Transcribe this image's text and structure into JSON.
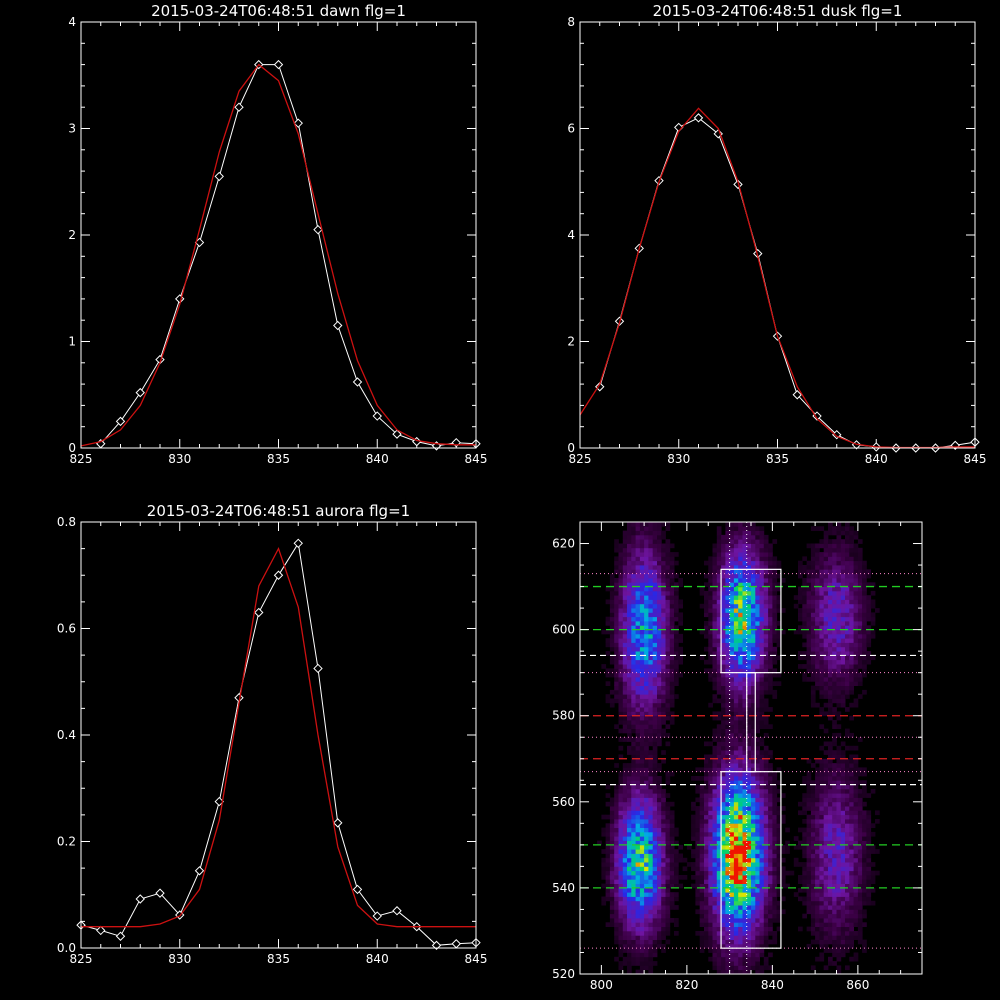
{
  "colors": {
    "background": "#000000",
    "axes": "#ffffff",
    "data_line": "#ffffff",
    "fit_line": "#cc1111",
    "green_dash": "#22cc22",
    "red_dash": "#dd2222",
    "white_dash": "#ffffff",
    "pink_dotted": "#ff88cc"
  },
  "chart_data": [
    {
      "type": "line",
      "title": "2015-03-24T06:48:51 dawn flg=1",
      "xlim": [
        825,
        845
      ],
      "ylim": [
        0,
        4
      ],
      "xticks": [
        825,
        830,
        835,
        840,
        845
      ],
      "yticks": [
        0,
        1,
        2,
        3,
        4
      ],
      "series": [
        {
          "role": "data",
          "marker": "diamond",
          "x": [
            826,
            827,
            828,
            829,
            830,
            831,
            832,
            833,
            834,
            835,
            836,
            837,
            838,
            839,
            840,
            841,
            842,
            843,
            844,
            845
          ],
          "y": [
            0.04,
            0.25,
            0.52,
            0.83,
            1.4,
            1.93,
            2.55,
            3.2,
            3.6,
            3.6,
            3.05,
            2.05,
            1.15,
            0.62,
            0.3,
            0.13,
            0.06,
            0.02,
            0.05,
            0.04
          ]
        },
        {
          "role": "fit",
          "x": [
            825,
            826,
            827,
            828,
            829,
            830,
            831,
            832,
            833,
            834,
            835,
            836,
            837,
            838,
            839,
            840,
            841,
            842,
            843,
            844,
            845
          ],
          "y": [
            0.02,
            0.06,
            0.17,
            0.4,
            0.8,
            1.35,
            2.05,
            2.78,
            3.35,
            3.6,
            3.45,
            2.95,
            2.2,
            1.45,
            0.82,
            0.4,
            0.17,
            0.07,
            0.04,
            0.03,
            0.03
          ]
        }
      ]
    },
    {
      "type": "line",
      "title": "2015-03-24T06:48:51 dusk flg=1",
      "xlim": [
        825,
        845
      ],
      "ylim": [
        0,
        8
      ],
      "xticks": [
        825,
        830,
        835,
        840,
        845
      ],
      "yticks": [
        0,
        2,
        4,
        6,
        8
      ],
      "series": [
        {
          "role": "data",
          "marker": "diamond",
          "x": [
            826,
            827,
            828,
            829,
            830,
            831,
            832,
            833,
            834,
            835,
            836,
            837,
            838,
            839,
            840,
            841,
            842,
            843,
            844,
            845
          ],
          "y": [
            1.15,
            2.38,
            3.75,
            5.02,
            6.02,
            6.2,
            5.9,
            4.95,
            3.65,
            2.1,
            1.0,
            0.6,
            0.25,
            0.06,
            0.02,
            0.0,
            0.0,
            0.0,
            0.05,
            0.11
          ]
        },
        {
          "role": "fit",
          "x": [
            825,
            826,
            827,
            828,
            829,
            830,
            831,
            832,
            833,
            834,
            835,
            836,
            837,
            838,
            839,
            840,
            841,
            842,
            843,
            844,
            845
          ],
          "y": [
            0.62,
            1.2,
            2.35,
            3.75,
            5.0,
            5.95,
            6.38,
            6.0,
            5.0,
            3.6,
            2.1,
            1.15,
            0.55,
            0.22,
            0.07,
            0.02,
            0.01,
            0.01,
            0.01,
            0.02,
            0.02
          ]
        }
      ]
    },
    {
      "type": "line",
      "title": "2015-03-24T06:48:51 aurora flg=1",
      "xlim": [
        825,
        845
      ],
      "ylim": [
        0,
        0.8
      ],
      "xticks": [
        825,
        830,
        835,
        840,
        845
      ],
      "yticks": [
        0,
        0.2,
        0.4,
        0.6,
        0.8
      ],
      "ytick_labels": [
        "0.0",
        "0.2",
        "0.4",
        "0.6",
        "0.8"
      ],
      "series": [
        {
          "role": "data",
          "marker": "diamond",
          "x": [
            825,
            826,
            827,
            828,
            829,
            830,
            831,
            832,
            833,
            834,
            835,
            836,
            837,
            838,
            839,
            840,
            841,
            842,
            843,
            844,
            845
          ],
          "y": [
            0.043,
            0.033,
            0.022,
            0.092,
            0.103,
            0.062,
            0.145,
            0.275,
            0.47,
            0.63,
            0.7,
            0.76,
            0.525,
            0.235,
            0.11,
            0.06,
            0.07,
            0.04,
            0.005,
            0.008,
            0.01
          ]
        },
        {
          "role": "fit",
          "x": [
            825,
            826,
            827,
            828,
            829,
            830,
            831,
            832,
            833,
            834,
            835,
            836,
            837,
            838,
            839,
            840,
            841,
            842,
            843,
            844,
            845
          ],
          "y": [
            0.04,
            0.04,
            0.04,
            0.04,
            0.045,
            0.06,
            0.11,
            0.24,
            0.46,
            0.68,
            0.75,
            0.64,
            0.4,
            0.19,
            0.08,
            0.045,
            0.04,
            0.04,
            0.04,
            0.04,
            0.04
          ]
        }
      ]
    },
    {
      "type": "heatmap",
      "title": "",
      "xlim": [
        795,
        875
      ],
      "ylim": [
        520,
        625
      ],
      "xticks": [
        800,
        820,
        840,
        860
      ],
      "yticks": [
        520,
        540,
        560,
        580,
        600,
        620
      ],
      "blobs": [
        {
          "x": 810,
          "y": 600,
          "sx": 3.5,
          "sy": 12,
          "amp": 0.55
        },
        {
          "x": 809,
          "y": 546,
          "sx": 3.5,
          "sy": 10,
          "amp": 0.7
        },
        {
          "x": 833,
          "y": 603,
          "sx": 3.5,
          "sy": 10,
          "amp": 0.75
        },
        {
          "x": 832,
          "y": 548,
          "sx": 4.0,
          "sy": 12,
          "amp": 1.0
        },
        {
          "x": 855,
          "y": 603,
          "sx": 4.0,
          "sy": 10,
          "amp": 0.3
        },
        {
          "x": 855,
          "y": 548,
          "sx": 4.0,
          "sy": 12,
          "amp": 0.28
        }
      ],
      "horizontal_lines": [
        {
          "y": 610,
          "style": "green-dashed"
        },
        {
          "y": 600,
          "style": "green-dashed"
        },
        {
          "y": 550,
          "style": "green-dashed"
        },
        {
          "y": 540,
          "style": "green-dashed"
        },
        {
          "y": 580,
          "style": "red-dashed"
        },
        {
          "y": 570,
          "style": "red-dashed"
        },
        {
          "y": 594,
          "style": "white-dashed"
        },
        {
          "y": 564,
          "style": "white-dashed"
        },
        {
          "y": 613,
          "style": "pink-dotted"
        },
        {
          "y": 590,
          "style": "pink-dotted"
        },
        {
          "y": 575,
          "style": "pink-dotted"
        },
        {
          "y": 567,
          "style": "pink-dotted"
        },
        {
          "y": 526,
          "style": "pink-dotted"
        }
      ],
      "vertical_lines": [
        {
          "x": 830,
          "style": "white-dotted"
        },
        {
          "x": 834,
          "style": "white-dotted"
        }
      ],
      "boxes": [
        {
          "x0": 828,
          "x1": 842,
          "y0": 590,
          "y1": 614
        },
        {
          "x0": 828,
          "x1": 842,
          "y0": 526,
          "y1": 567
        }
      ],
      "connector": {
        "x0": 834,
        "x1": 836,
        "y0": 567,
        "y1": 590
      }
    }
  ]
}
